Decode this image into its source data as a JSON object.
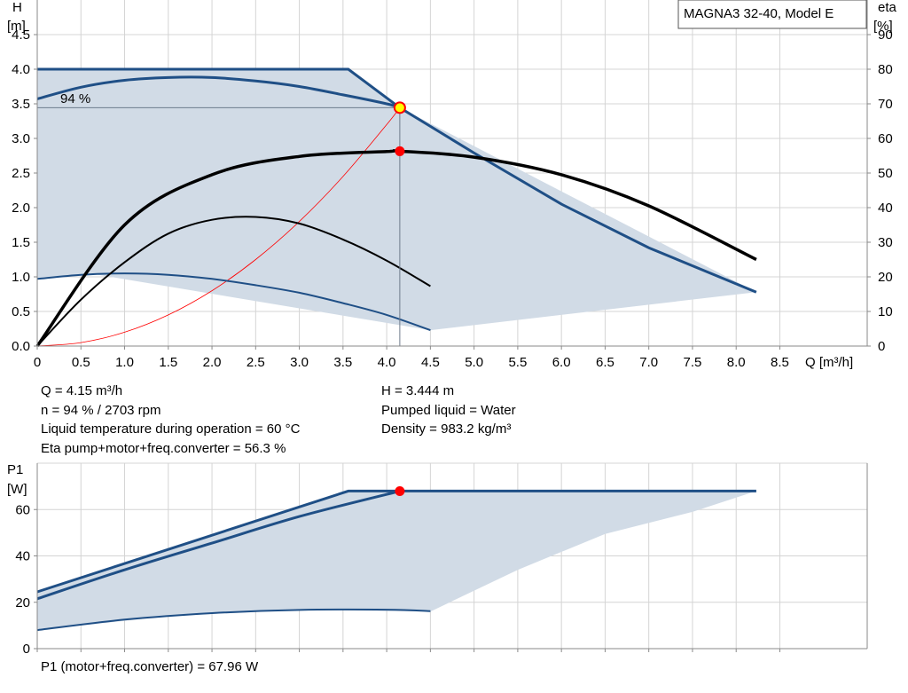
{
  "chart_data": [
    {
      "type": "line",
      "title": "MAGNA3 32-40, Model E",
      "ylabel_left": "H",
      "ylabel_left_unit": "[m]",
      "ylabel_right": "eta",
      "ylabel_right_unit": "[%]",
      "xlabel": "Q [m³/h]",
      "xlim": [
        0,
        9.5
      ],
      "ylim_left": [
        0,
        5.0
      ],
      "ylim_right": [
        0,
        100
      ],
      "x_ticks": [
        "0",
        "0.5",
        "1.0",
        "1.5",
        "2.0",
        "2.5",
        "3.0",
        "3.5",
        "4.0",
        "4.5",
        "5.0",
        "5.5",
        "6.0",
        "6.5",
        "7.0",
        "7.5",
        "8.0",
        "8.5"
      ],
      "y_left_ticks": [
        "0.0",
        "0.5",
        "1.0",
        "1.5",
        "2.0",
        "2.5",
        "3.0",
        "3.5",
        "4.0",
        "4.5"
      ],
      "y_right_ticks": [
        "0",
        "10",
        "20",
        "30",
        "40",
        "50",
        "60",
        "70",
        "80",
        "90"
      ],
      "grid": true,
      "curve_label": "94 %",
      "operating_region_H": [
        [
          0,
          4.0
        ],
        [
          3.56,
          4.0
        ],
        [
          4.15,
          3.444
        ],
        [
          8.23,
          0.78
        ],
        [
          4.5,
          0.23
        ],
        [
          0.6,
          1.05
        ],
        [
          0,
          0.97
        ]
      ],
      "series": [
        {
          "role": "H at 94 %",
          "x": [
            0,
            0.5,
            1.0,
            1.5,
            2.0,
            2.5,
            3.0,
            3.5,
            4.0,
            4.15
          ],
          "y": [
            3.57,
            3.74,
            3.84,
            3.88,
            3.88,
            3.83,
            3.75,
            3.63,
            3.5,
            3.444
          ]
        },
        {
          "role": "H max",
          "x": [
            0,
            3.56,
            4.15,
            5.0,
            6.0,
            7.0,
            8.23
          ],
          "y": [
            4.0,
            4.0,
            3.444,
            2.79,
            2.05,
            1.42,
            0.78
          ]
        },
        {
          "role": "H min",
          "x": [
            0,
            0.5,
            1.0,
            1.5,
            2.0,
            2.5,
            3.0,
            3.5,
            4.0,
            4.5
          ],
          "y": [
            0.97,
            1.03,
            1.05,
            1.03,
            0.97,
            0.88,
            0.77,
            0.62,
            0.45,
            0.23
          ]
        },
        {
          "role": "eta at 94 %",
          "x": [
            0,
            1.0,
            2.0,
            3.0,
            4.0,
            4.15,
            5.0,
            6.0,
            7.0,
            8.23
          ],
          "y": [
            0,
            35,
            49.5,
            54.8,
            56.2,
            56.3,
            54.6,
            49.5,
            40.5,
            25
          ]
        },
        {
          "role": "eta min",
          "x": [
            0,
            0.5,
            1.0,
            1.5,
            2.0,
            2.5,
            3.0,
            3.5,
            4.0,
            4.5
          ],
          "y": [
            0,
            13.4,
            24.2,
            32.5,
            36.5,
            37.3,
            35.4,
            30.8,
            24.7,
            17.3
          ]
        },
        {
          "role": "system curve",
          "x": [
            0,
            0.5,
            1.0,
            1.5,
            2.0,
            2.5,
            3.0,
            3.5,
            4.0,
            4.15
          ],
          "y": [
            0,
            0.05,
            0.2,
            0.45,
            0.8,
            1.25,
            1.8,
            2.45,
            3.2,
            3.444
          ]
        }
      ],
      "operating_point": {
        "Q": 4.15,
        "H": 3.444,
        "eta": 56.3
      }
    },
    {
      "type": "line",
      "ylabel": "P1",
      "ylabel_unit": "[W]",
      "xlim": [
        0,
        9.5
      ],
      "ylim": [
        0,
        80
      ],
      "y_ticks": [
        "0",
        "20",
        "40",
        "60"
      ],
      "grid": true,
      "operating_region_P1": [
        [
          0,
          24.5
        ],
        [
          3.56,
          68.0
        ],
        [
          8.23,
          68.0
        ],
        [
          7.5,
          59
        ],
        [
          6.5,
          49.5
        ],
        [
          5.5,
          34
        ],
        [
          4.5,
          16
        ],
        [
          3.0,
          16.8
        ],
        [
          1.5,
          14
        ],
        [
          0,
          8
        ]
      ],
      "series": [
        {
          "role": "P1 max",
          "x": [
            0,
            3.56,
            8.23
          ],
          "y": [
            24.5,
            68.0,
            68.0
          ]
        },
        {
          "role": "P1 at 94 %",
          "x": [
            0,
            1.0,
            2.0,
            3.0,
            4.15
          ],
          "y": [
            21.5,
            34.0,
            45.5,
            57.0,
            67.96
          ]
        },
        {
          "role": "P1 min",
          "x": [
            0,
            1.0,
            2.0,
            3.0,
            4.0,
            4.5
          ],
          "y": [
            8,
            12.5,
            15.3,
            16.7,
            16.8,
            16.2
          ]
        }
      ],
      "operating_point": {
        "Q": 4.15,
        "P1": 67.96
      }
    }
  ],
  "info": {
    "left": [
      "Q = 4.15 m³/h",
      "n = 94 % / 2703 rpm",
      "Liquid temperature during operation = 60 °C",
      "Eta pump+motor+freq.converter = 56.3 %"
    ],
    "right": [
      "H = 3.444 m",
      "Pumped liquid = Water",
      "Density = 983.2 kg/m³"
    ],
    "footer": "P1 (motor+freq.converter) = 67.96 W"
  },
  "colors": {
    "curve_blue": "#1f4f86",
    "region_fill": "#d1dbe6",
    "eta_black": "#000000",
    "system_red": "#ff0000",
    "point_red": "#ff0000",
    "point_yellow": "#ffff00",
    "grid": "#d4d4d4",
    "axis": "#8a8a8a"
  }
}
